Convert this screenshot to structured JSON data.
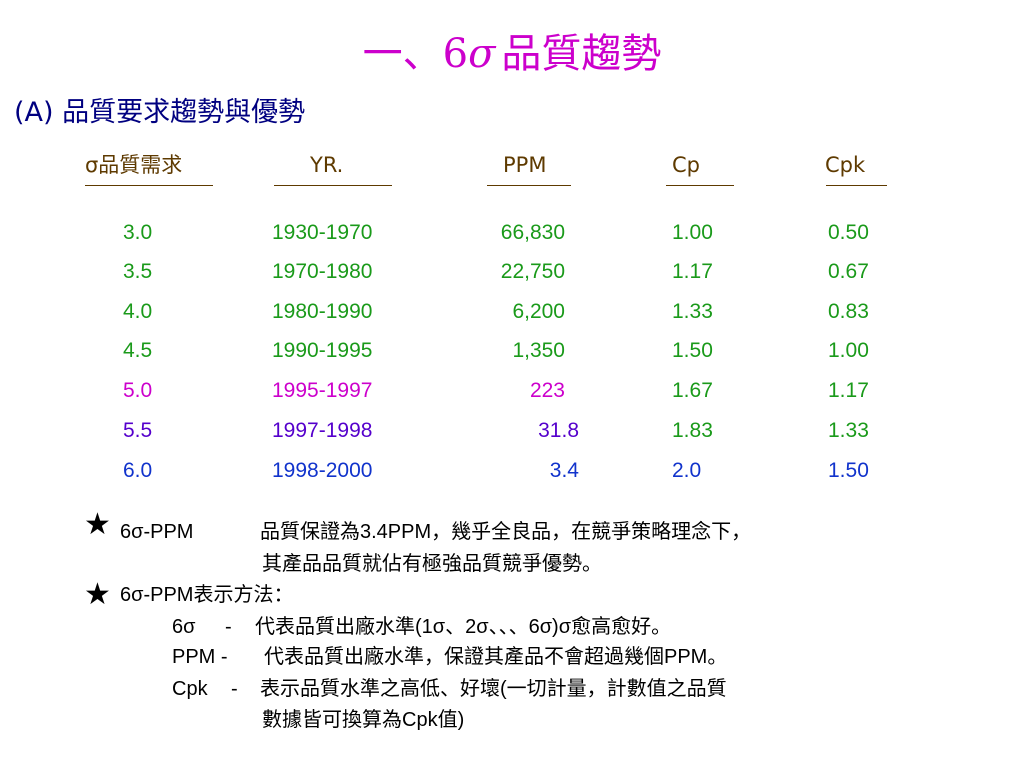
{
  "title": {
    "prefix": "一、",
    "six": "6",
    "sigma": "σ",
    "rest": "品質趨勢"
  },
  "subtitle": {
    "label": "(A)",
    "text": "品質要求趨勢與優勢"
  },
  "table": {
    "headers": [
      "σ品質需求",
      "YR.",
      "PPM",
      "Cp",
      "Cpk"
    ],
    "rows": [
      {
        "sigma": "3.0",
        "yr": "1930-1970",
        "ppm": "66,830",
        "cp": "1.00",
        "cpk": "0.50",
        "color": "#1a9a1a"
      },
      {
        "sigma": "3.5",
        "yr": "1970-1980",
        "ppm": "22,750",
        "cp": "1.17",
        "cpk": "0.67",
        "color": "#1a9a1a"
      },
      {
        "sigma": "4.0",
        "yr": "1980-1990",
        "ppm": "6,200",
        "cp": "1.33",
        "cpk": "0.83",
        "color": "#1a9a1a"
      },
      {
        "sigma": "4.5",
        "yr": "1990-1995",
        "ppm": "1,350",
        "cp": "1.50",
        "cpk": "1.00",
        "color": "#1a9a1a"
      },
      {
        "sigma": "5.0",
        "yr": "1995-1997",
        "ppm": "223",
        "cp": "1.67",
        "cpk": "1.17",
        "color": "#cc00cc",
        "side_color": "#1a9a1a"
      },
      {
        "sigma": "5.5",
        "yr": "1997-1998",
        "ppm": "31.8",
        "cp": "1.83",
        "cpk": "1.33",
        "color": "#5500cc",
        "side_color": "#1a9a1a"
      },
      {
        "sigma": "6.0",
        "yr": "1998-2000",
        "ppm": "3.4",
        "cp": "2.0",
        "cpk": "1.50",
        "color": "#1133cc",
        "side_color": "#1133cc"
      }
    ]
  },
  "notes": {
    "star_icon": "black-star",
    "n1_label": "6σ-PPM",
    "n1_line1": "品質保證為3.4PPM，幾乎全良品，在競爭策略理念下，",
    "n1_line2": "其產品品質就佔有極強品質競爭優勢。",
    "n2_label": "6σ-PPM表示方法：",
    "n2_a_key": "6σ",
    "n2_a_dash": "-",
    "n2_a_text": "代表品質出廠水準(1σ、2σ、、、6σ)σ愈高愈好。",
    "n2_b_key": "PPM -",
    "n2_b_text": "代表品質出廠水準，保證其產品不會超過幾個PPM。",
    "n2_c_key": "Cpk",
    "n2_c_dash": "-",
    "n2_c_text": "表示品質水準之高低、好壞(一切計量，計數值之品質",
    "n2_c_text2": "數據皆可換算為Cpk值)"
  },
  "colors": {
    "title": "#cc00cc",
    "subtitle": "#000080",
    "header": "#5e3a00",
    "green": "#1a9a1a",
    "magenta": "#cc00cc",
    "purple": "#5500cc",
    "blue": "#1133cc"
  }
}
